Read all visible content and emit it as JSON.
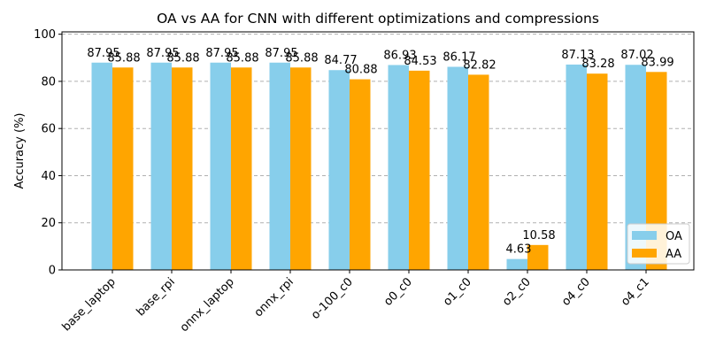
{
  "chart_data": {
    "type": "bar",
    "title": "OA vs AA for CNN with different optimizations and compressions",
    "xlabel": "",
    "ylabel": "Accuracy (%)",
    "ylim": [
      0,
      101
    ],
    "yticks": [
      0,
      20,
      40,
      60,
      80,
      100
    ],
    "grid": "y",
    "legend_position": "lower-right",
    "categories": [
      "base_laptop",
      "base_rpi",
      "onnx_laptop",
      "onnx_rpi",
      "o-100_c0",
      "o0_c0",
      "o1_c0",
      "o2_c0",
      "o4_c0",
      "o4_c1"
    ],
    "series": [
      {
        "name": "OA",
        "color": "#87CEEB",
        "values": [
          87.95,
          87.95,
          87.95,
          87.95,
          84.77,
          86.93,
          86.17,
          4.63,
          87.13,
          87.02
        ],
        "labels": [
          "87.95",
          "87.95",
          "87.95",
          "87.95",
          "84.77",
          "86.93",
          "86.17",
          "4.63",
          "87.13",
          "87.02"
        ]
      },
      {
        "name": "AA",
        "color": "#FFA500",
        "values": [
          85.88,
          85.88,
          85.88,
          85.88,
          80.88,
          84.53,
          82.82,
          10.58,
          83.28,
          83.99
        ],
        "labels": [
          "85.88",
          "85.88",
          "85.88",
          "85.88",
          "80.88",
          "84.53",
          "82.82",
          "10.58",
          "83.28",
          "83.99"
        ]
      }
    ]
  }
}
